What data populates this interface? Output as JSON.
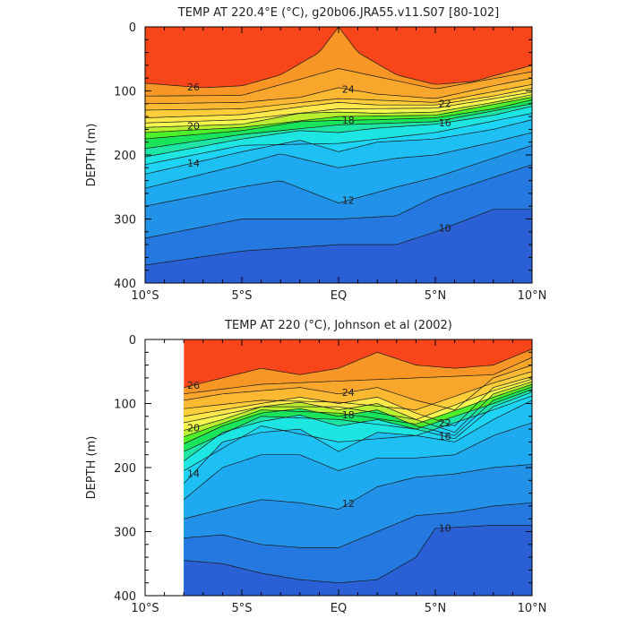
{
  "chart_data": [
    {
      "type": "contour",
      "title": "TEMP AT 220.4°E (°C), g20b06.JRA55.v11.S07 [80-102]",
      "xlabel": "",
      "ylabel": "DEPTH (m)",
      "x_ticks": [
        "10°S",
        "5°S",
        "EQ",
        "5°N",
        "10°N"
      ],
      "y_ticks": [
        "0",
        "100",
        "200",
        "300",
        "400"
      ],
      "xlim": [
        -10,
        10
      ],
      "ylim": [
        400,
        0
      ],
      "data_start_lat": -10,
      "contour_interval": 1,
      "max_temp": 27,
      "contours": [
        {
          "level": 26,
          "x": [
            -10,
            -7,
            -5,
            -3,
            -1,
            0,
            1,
            3,
            5,
            7,
            10
          ],
          "y": [
            88,
            95,
            92,
            75,
            40,
            0,
            40,
            75,
            90,
            85,
            60
          ]
        },
        {
          "level": 25,
          "x": [
            -10,
            -5,
            0,
            5,
            10
          ],
          "y": [
            108,
            107,
            65,
            97,
            70
          ]
        },
        {
          "level": 24,
          "x": [
            -10,
            -5,
            -2,
            0,
            2,
            5,
            8,
            10
          ],
          "y": [
            120,
            118,
            110,
            95,
            105,
            112,
            92,
            80
          ]
        },
        {
          "level": 23,
          "x": [
            -10,
            -5,
            0,
            5,
            10
          ],
          "y": [
            130,
            128,
            112,
            118,
            90
          ]
        },
        {
          "level": 22,
          "x": [
            -10,
            -5,
            -2,
            0,
            2,
            5,
            8,
            10
          ],
          "y": [
            142,
            137,
            125,
            118,
            122,
            122,
            108,
            96
          ]
        },
        {
          "level": 21,
          "x": [
            -10,
            -5,
            0,
            5,
            10
          ],
          "y": [
            150,
            145,
            128,
            127,
            102
          ]
        },
        {
          "level": 20,
          "x": [
            -10,
            -5,
            -2,
            0,
            2,
            5,
            8,
            10
          ],
          "y": [
            157,
            152,
            135,
            133,
            135,
            133,
            118,
            106
          ]
        },
        {
          "level": 19,
          "x": [
            -10,
            -5,
            0,
            5,
            10
          ],
          "y": [
            165,
            157,
            140,
            138,
            110
          ]
        },
        {
          "level": 18,
          "x": [
            -10,
            -5,
            -2,
            0,
            2,
            5,
            8,
            10
          ],
          "y": [
            175,
            162,
            148,
            146,
            145,
            142,
            128,
            114
          ]
        },
        {
          "level": 17,
          "x": [
            -10,
            -5,
            0,
            5,
            10
          ],
          "y": [
            190,
            168,
            153,
            148,
            120
          ]
        },
        {
          "level": 16,
          "x": [
            -10,
            -5,
            -2,
            0,
            2,
            5,
            8,
            10
          ],
          "y": [
            203,
            175,
            162,
            165,
            158,
            152,
            138,
            124
          ]
        },
        {
          "level": 15,
          "x": [
            -10,
            -5,
            0,
            5,
            10
          ],
          "y": [
            215,
            185,
            182,
            165,
            135
          ]
        },
        {
          "level": 14,
          "x": [
            -10,
            -5,
            -2,
            0,
            2,
            5,
            8,
            10
          ],
          "y": [
            230,
            195,
            177,
            195,
            180,
            175,
            160,
            145
          ]
        },
        {
          "level": 13,
          "x": [
            -10,
            -5,
            -3,
            0,
            3,
            5,
            8,
            10
          ],
          "y": [
            252,
            215,
            198,
            220,
            205,
            200,
            180,
            165
          ]
        },
        {
          "level": 12,
          "x": [
            -10,
            -5,
            -3,
            0,
            3,
            5,
            8,
            10
          ],
          "y": [
            280,
            250,
            240,
            275,
            250,
            235,
            205,
            185
          ]
        },
        {
          "level": 11,
          "x": [
            -10,
            -5,
            0,
            3,
            5,
            8,
            10
          ],
          "y": [
            330,
            300,
            300,
            295,
            265,
            235,
            215
          ]
        },
        {
          "level": 10,
          "x": [
            -10,
            -5,
            0,
            3,
            5,
            8,
            10
          ],
          "y": [
            372,
            350,
            340,
            340,
            320,
            285,
            285
          ]
        }
      ]
    },
    {
      "type": "contour",
      "title": "TEMP AT 220 (°C), Johnson et al (2002)",
      "xlabel": "",
      "ylabel": "DEPTH (m)",
      "x_ticks": [
        "10°S",
        "5°S",
        "EQ",
        "5°N",
        "10°N"
      ],
      "y_ticks": [
        "0",
        "100",
        "200",
        "300",
        "400"
      ],
      "xlim": [
        -10,
        10
      ],
      "ylim": [
        400,
        0
      ],
      "data_start_lat": -8,
      "contour_interval": 1,
      "max_temp": 27,
      "contours": [
        {
          "level": 26,
          "x": [
            -8,
            -6,
            -4,
            -2,
            0,
            2,
            4,
            6,
            8,
            10
          ],
          "y": [
            75,
            60,
            45,
            55,
            45,
            20,
            40,
            45,
            40,
            15
          ]
        },
        {
          "level": 25,
          "x": [
            -8,
            -4,
            0,
            4,
            8,
            10
          ],
          "y": [
            85,
            70,
            65,
            60,
            55,
            28
          ]
        },
        {
          "level": 24,
          "x": [
            -8,
            -6,
            -4,
            -2,
            0,
            2,
            4,
            6,
            8,
            10
          ],
          "y": [
            95,
            85,
            80,
            75,
            85,
            75,
            95,
            110,
            60,
            40
          ]
        },
        {
          "level": 23,
          "x": [
            -8,
            -4,
            0,
            4,
            8,
            10
          ],
          "y": [
            108,
            95,
            98,
            110,
            68,
            50
          ]
        },
        {
          "level": 22,
          "x": [
            -8,
            -6,
            -4,
            -2,
            0,
            2,
            4,
            6,
            8,
            10
          ],
          "y": [
            120,
            110,
            100,
            90,
            100,
            90,
            115,
            135,
            75,
            58
          ]
        },
        {
          "level": 21,
          "x": [
            -8,
            -4,
            0,
            4,
            8,
            10
          ],
          "y": [
            130,
            105,
            105,
            125,
            80,
            62
          ]
        },
        {
          "level": 20,
          "x": [
            -8,
            -6,
            -4,
            -2,
            0,
            2,
            4,
            6,
            8,
            10
          ],
          "y": [
            142,
            125,
            105,
            98,
            110,
            100,
            125,
            145,
            85,
            66
          ]
        },
        {
          "level": 19,
          "x": [
            -8,
            -4,
            0,
            4,
            8,
            10
          ],
          "y": [
            152,
            110,
            115,
            132,
            90,
            70
          ]
        },
        {
          "level": 18,
          "x": [
            -8,
            -6,
            -4,
            -2,
            0,
            2,
            4,
            6,
            8,
            10
          ],
          "y": [
            163,
            135,
            115,
            108,
            120,
            110,
            135,
            150,
            95,
            74
          ]
        },
        {
          "level": 17,
          "x": [
            -8,
            -4,
            0,
            4,
            8,
            10
          ],
          "y": [
            175,
            120,
            125,
            140,
            100,
            78
          ]
        },
        {
          "level": 16,
          "x": [
            -8,
            -6,
            -4,
            -2,
            0,
            2,
            4,
            6,
            8,
            10
          ],
          "y": [
            190,
            145,
            128,
            118,
            135,
            125,
            140,
            155,
            105,
            82
          ]
        },
        {
          "level": 15,
          "x": [
            -8,
            -4,
            0,
            4,
            8,
            10
          ],
          "y": [
            205,
            135,
            160,
            150,
            110,
            88
          ]
        },
        {
          "level": 14,
          "x": [
            -8,
            -6,
            -4,
            -2,
            0,
            2,
            4,
            6,
            8,
            10
          ],
          "y": [
            225,
            160,
            145,
            140,
            175,
            145,
            150,
            160,
            125,
            95
          ]
        },
        {
          "level": 13,
          "x": [
            -8,
            -6,
            -4,
            -2,
            0,
            2,
            4,
            6,
            8,
            10
          ],
          "y": [
            250,
            200,
            180,
            180,
            205,
            185,
            185,
            180,
            150,
            130
          ]
        },
        {
          "level": 12,
          "x": [
            -8,
            -6,
            -4,
            -2,
            0,
            2,
            4,
            6,
            8,
            10
          ],
          "y": [
            280,
            265,
            250,
            255,
            265,
            230,
            215,
            210,
            200,
            195
          ]
        },
        {
          "level": 11,
          "x": [
            -8,
            -6,
            -4,
            -2,
            0,
            2,
            4,
            6,
            8,
            10
          ],
          "y": [
            310,
            305,
            320,
            325,
            325,
            300,
            275,
            270,
            260,
            255
          ]
        },
        {
          "level": 10,
          "x": [
            -8,
            -6,
            -4,
            -2,
            0,
            2,
            4,
            5,
            8,
            10
          ],
          "y": [
            345,
            350,
            365,
            375,
            380,
            375,
            340,
            295,
            290,
            290
          ]
        }
      ]
    }
  ]
}
